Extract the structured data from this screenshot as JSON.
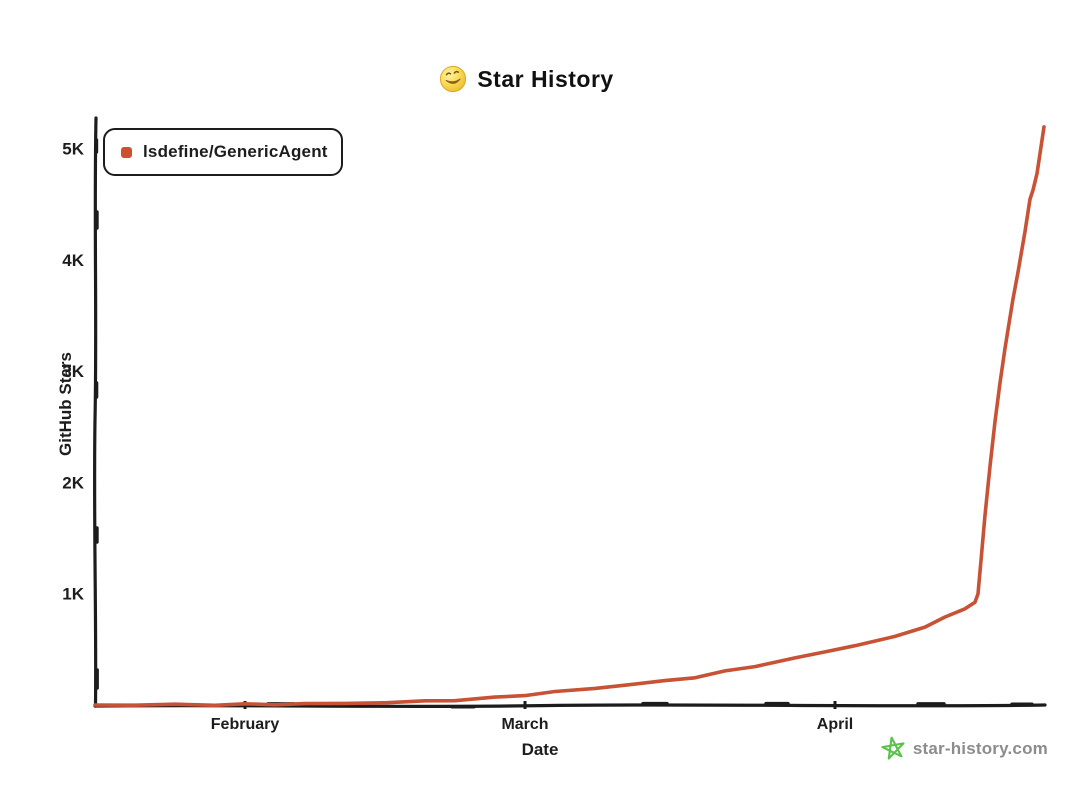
{
  "title": {
    "text": "Star History",
    "emoji": "yellow-smiley"
  },
  "legend": {
    "items": [
      {
        "label": "lsdefine/GenericAgent",
        "color": "#d14e31"
      }
    ]
  },
  "watermark": {
    "text": "star-history.com",
    "text_color": "#8c8c8c",
    "star_color": "#5bc14d"
  },
  "colors": {
    "axis": "#1c1c1c",
    "series": "#c85236",
    "background": "#ffffff"
  },
  "chart_data": {
    "type": "line",
    "title": "Star History",
    "xlabel": "Date",
    "ylabel": "GitHub Stars",
    "legend_position": "top-left",
    "grid": false,
    "x_unit": "days since chart start (approx Jan 17)",
    "xlim_days": [
      0,
      95
    ],
    "ylim": [
      0,
      5300
    ],
    "x_ticks": [
      {
        "label": "February",
        "day": 15
      },
      {
        "label": "March",
        "day": 43
      },
      {
        "label": "April",
        "day": 74
      }
    ],
    "y_ticks": [
      {
        "label": "1K",
        "value": 1000
      },
      {
        "label": "2K",
        "value": 2000
      },
      {
        "label": "3K",
        "value": 3000
      },
      {
        "label": "4K",
        "value": 4000
      },
      {
        "label": "5K",
        "value": 5000
      }
    ],
    "series": [
      {
        "name": "lsdefine/GenericAgent",
        "color": "#c85236",
        "points_day_stars": [
          [
            0,
            0
          ],
          [
            4,
            1
          ],
          [
            8,
            2
          ],
          [
            12,
            3
          ],
          [
            15,
            5
          ],
          [
            18,
            7
          ],
          [
            21,
            10
          ],
          [
            25,
            15
          ],
          [
            29,
            22
          ],
          [
            33,
            33
          ],
          [
            36,
            45
          ],
          [
            40,
            65
          ],
          [
            43,
            90
          ],
          [
            46,
            118
          ],
          [
            50,
            150
          ],
          [
            53,
            180
          ],
          [
            57,
            215
          ],
          [
            60,
            250
          ],
          [
            63,
            300
          ],
          [
            66,
            350
          ],
          [
            70,
            420
          ],
          [
            73,
            478
          ],
          [
            76,
            535
          ],
          [
            80,
            612
          ],
          [
            83,
            706
          ],
          [
            85,
            784
          ],
          [
            87,
            870
          ],
          [
            88,
            920
          ],
          [
            88.3,
            1000
          ],
          [
            88.6,
            1300
          ],
          [
            89,
            1700
          ],
          [
            89.5,
            2150
          ],
          [
            90,
            2540
          ],
          [
            90.5,
            2900
          ],
          [
            91,
            3200
          ],
          [
            91.8,
            3650
          ],
          [
            92.3,
            3890
          ],
          [
            93,
            4250
          ],
          [
            93.5,
            4550
          ],
          [
            93.8,
            4620
          ],
          [
            94.2,
            4780
          ],
          [
            94.9,
            5190
          ]
        ]
      }
    ]
  }
}
